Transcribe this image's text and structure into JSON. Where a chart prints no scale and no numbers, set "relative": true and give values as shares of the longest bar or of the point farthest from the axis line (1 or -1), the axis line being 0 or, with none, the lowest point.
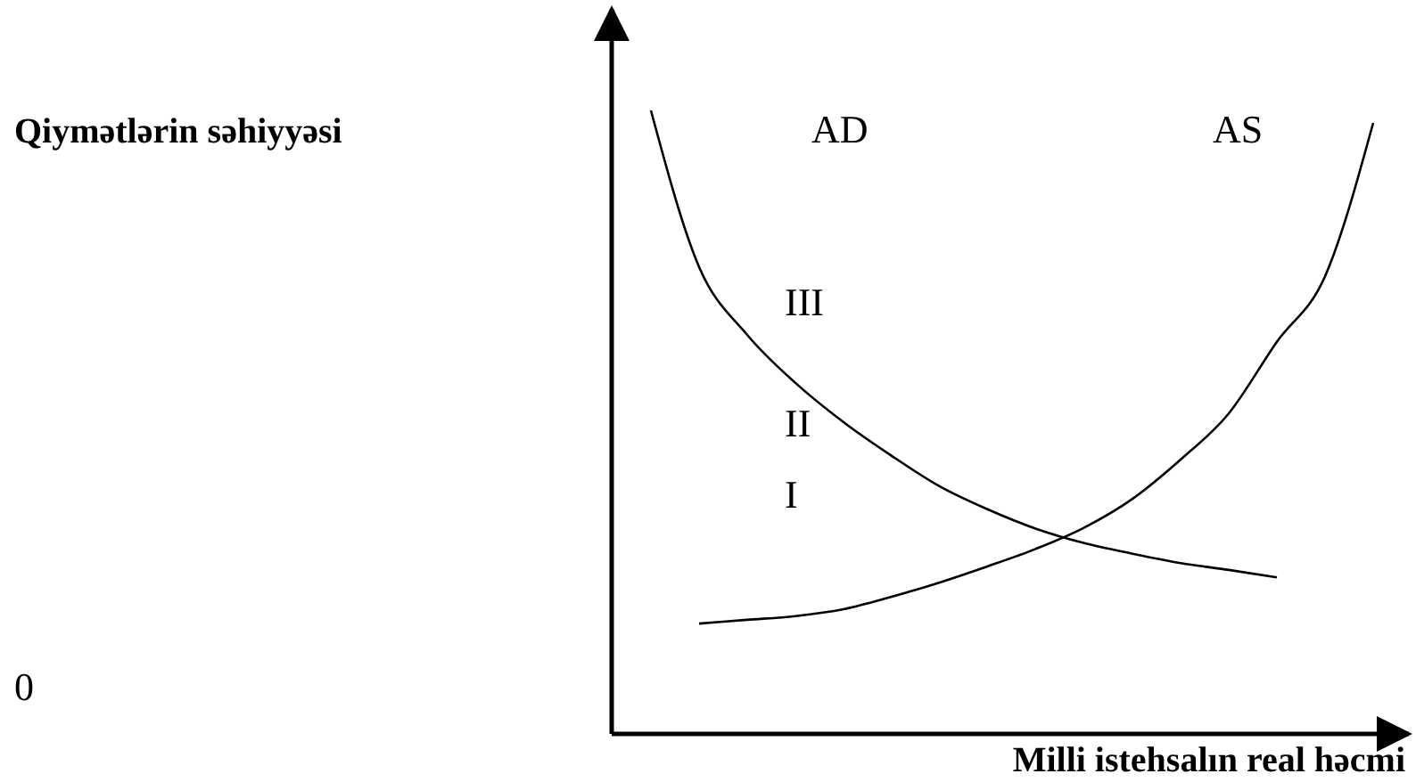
{
  "chart_data": {
    "type": "line",
    "relative": true,
    "xlabel": "Milli istehsalın real həcmi",
    "categories": [
      null,
      null,
      null,
      null,
      null,
      null,
      null,
      null,
      null,
      null,
      null,
      null,
      null,
      null,
      null,
      null
    ],
    "series": [
      {
        "color": "#000000",
        "values": [
          1.0,
          0.749,
          0.64,
          0.563,
          0.5,
          0.446,
          0.397,
          0.36,
          0.329,
          0.306,
          0.289,
          0.274,
          0.263,
          0.251,
          null,
          null
        ]
      },
      {
        "color": "#000000",
        "values": [
          null,
          0.177,
          0.183,
          0.189,
          0.2,
          0.22,
          0.243,
          0.269,
          0.297,
          0.331,
          0.377,
          0.44,
          0.514,
          0.629,
          0.734,
          0.98
        ]
      }
    ],
    "annotations": [
      "Qiymətlərin səhiyyəsi",
      "AD",
      "AS",
      "III",
      "II",
      "I",
      "0"
    ],
    "marker": "none",
    "line_style": "solid"
  }
}
